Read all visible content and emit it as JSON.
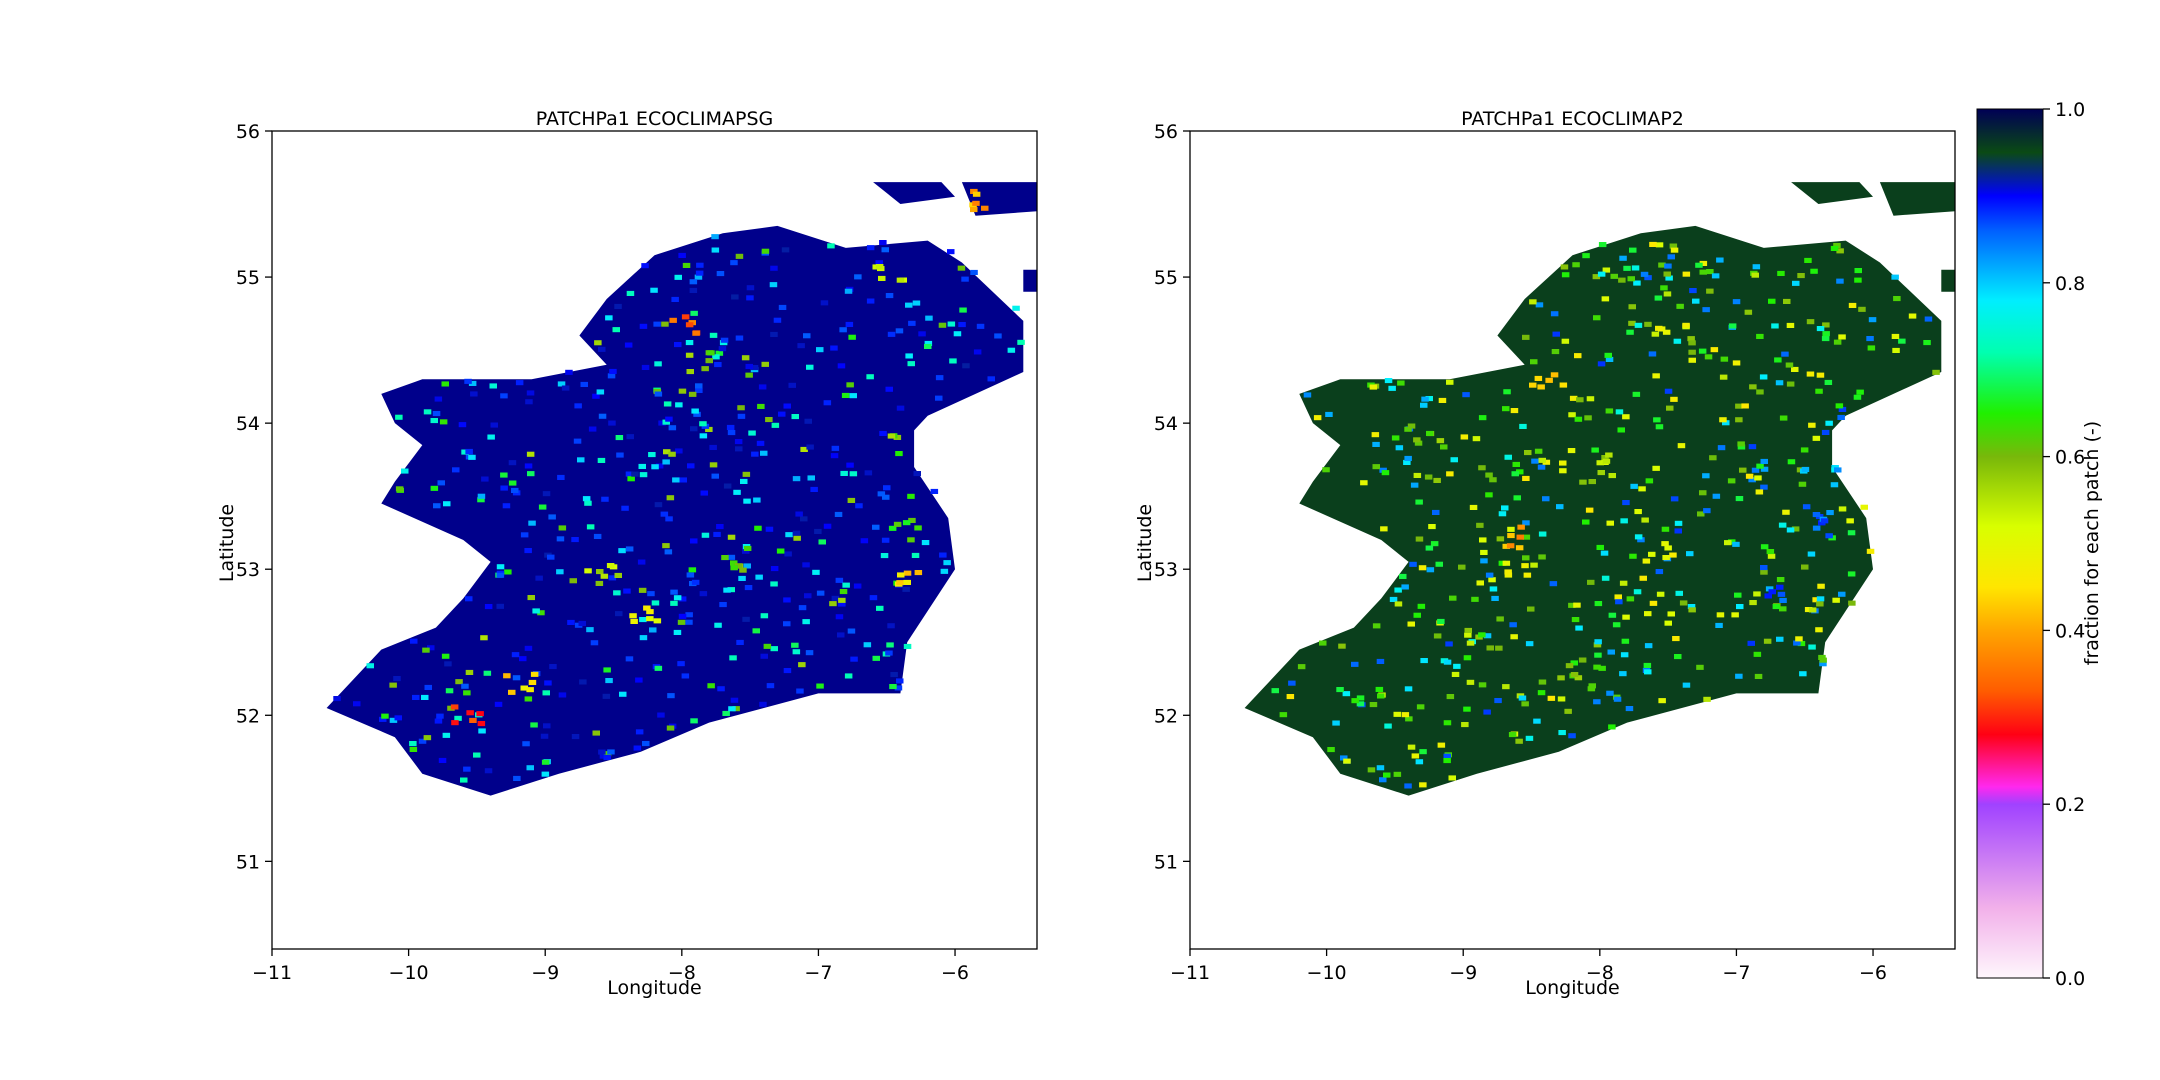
{
  "chart_data": [
    {
      "type": "heatmap",
      "title": "PATCHPa1 ECOCLIMAPSG",
      "xlabel": "Longitude",
      "ylabel": "Latitude",
      "xlim": [
        -11,
        -5.4
      ],
      "ylim": [
        50.4,
        56
      ],
      "xticks": [
        -11,
        -10,
        -9,
        -8,
        -7,
        -6
      ],
      "xtick_labels": [
        "−11",
        "−10",
        "−9",
        "−8",
        "−7",
        "−6"
      ],
      "yticks": [
        51,
        52,
        53,
        54,
        55,
        56
      ],
      "ytick_labels": [
        "51",
        "52",
        "53",
        "54",
        "55",
        "56"
      ],
      "grid": false,
      "dominant_value": 0.95,
      "dominant_color": "#00008b",
      "regional_values": [
        {
          "lon": -8.6,
          "lat": 52.95,
          "value": 0.55
        },
        {
          "lon": -7.9,
          "lat": 54.4,
          "value": 0.6
        },
        {
          "lon": -8.0,
          "lat": 54.65,
          "value": 0.35
        },
        {
          "lon": -6.4,
          "lat": 53.25,
          "value": 0.65
        },
        {
          "lon": -6.4,
          "lat": 52.9,
          "value": 0.45
        },
        {
          "lon": -9.6,
          "lat": 52.0,
          "value": 0.3
        },
        {
          "lon": -9.2,
          "lat": 52.2,
          "value": 0.45
        },
        {
          "lon": -7.6,
          "lat": 53.05,
          "value": 0.6
        },
        {
          "lon": -8.3,
          "lat": 52.65,
          "value": 0.5
        },
        {
          "lon": -5.9,
          "lat": 55.5,
          "value": 0.4
        },
        {
          "lon": -6.5,
          "lat": 55.0,
          "value": 0.55
        }
      ]
    },
    {
      "type": "heatmap",
      "title": "PATCHPa1 ECOCLIMAP2",
      "xlabel": "Longitude",
      "ylabel": "Latitude",
      "xlim": [
        -11,
        -5.4
      ],
      "ylim": [
        50.4,
        56
      ],
      "xticks": [
        -11,
        -10,
        -9,
        -8,
        -7,
        -6
      ],
      "xtick_labels": [
        "−11",
        "−10",
        "−9",
        "−8",
        "−7",
        "−6"
      ],
      "yticks": [
        51,
        52,
        53,
        54,
        55,
        56
      ],
      "ytick_labels": [
        "51",
        "52",
        "53",
        "54",
        "55",
        "56"
      ],
      "grid": false,
      "dominant_value": 0.97,
      "dominant_color": "#0a3f1c",
      "regional_values": [
        {
          "lon": -8.6,
          "lat": 52.95,
          "value": 0.5
        },
        {
          "lon": -8.0,
          "lat": 53.7,
          "value": 0.55
        },
        {
          "lon": -8.4,
          "lat": 54.3,
          "value": 0.45
        },
        {
          "lon": -7.5,
          "lat": 54.6,
          "value": 0.5
        },
        {
          "lon": -6.5,
          "lat": 53.3,
          "value": 0.85
        },
        {
          "lon": -6.8,
          "lat": 52.8,
          "value": 0.85
        },
        {
          "lon": -9.3,
          "lat": 53.9,
          "value": 0.6
        },
        {
          "lon": -9.7,
          "lat": 52.1,
          "value": 0.65
        },
        {
          "lon": -8.1,
          "lat": 52.3,
          "value": 0.6
        },
        {
          "lon": -7.6,
          "lat": 53.1,
          "value": 0.5
        },
        {
          "lon": -8.6,
          "lat": 53.2,
          "value": 0.4
        }
      ]
    }
  ],
  "colorbar": {
    "label": "fraction for each patch (-)",
    "ticks": [
      0.0,
      0.2,
      0.4,
      0.6,
      0.8,
      1.0
    ],
    "tick_labels": [
      "0.0",
      "0.2",
      "0.4",
      "0.6",
      "0.8",
      "1.0"
    ],
    "range": [
      0.0,
      1.0
    ],
    "colormap": "gist_ncar_r"
  }
}
